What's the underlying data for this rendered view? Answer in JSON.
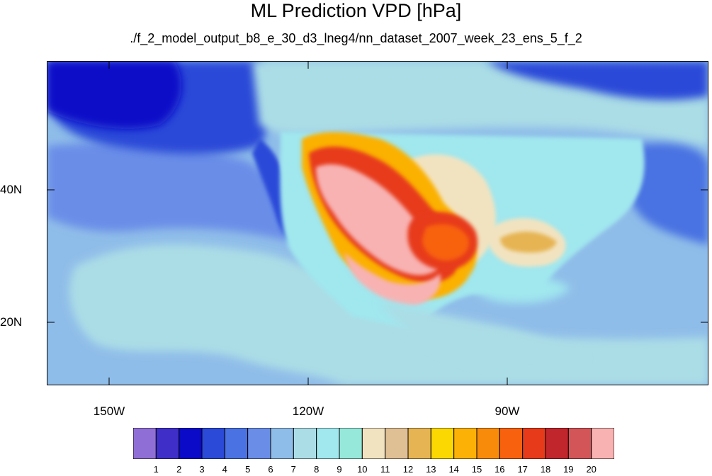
{
  "title": "ML Prediction VPD [hPa]",
  "subtitle": "./f_2_model_output_b8_e_30_d3_lneg4/nn_dataset_2007_week_23_ens_5_f_2",
  "map": {
    "lon_labels": [
      "150W",
      "120W",
      "90W"
    ],
    "lat_labels": [
      "40N",
      "20N"
    ],
    "lon_range": [
      -159.5,
      -60
    ],
    "lat_range": [
      10.5,
      59.5
    ]
  },
  "colorbar": {
    "labels": [
      "1",
      "2",
      "3",
      "4",
      "5",
      "6",
      "7",
      "8",
      "9",
      "10",
      "11",
      "12",
      "13",
      "14",
      "15",
      "16",
      "17",
      "18",
      "19",
      "20"
    ],
    "colors": [
      "#8f6fd6",
      "#3f2fc8",
      "#0a0ac8",
      "#2b4ad8",
      "#4a72e2",
      "#6a8ee8",
      "#8fbde9",
      "#abdde6",
      "#a0e7ee",
      "#96e8da",
      "#f2e3c0",
      "#dfbf94",
      "#e6b452",
      "#fcd803",
      "#fbb106",
      "#f98b0a",
      "#f8620e",
      "#e73a1a",
      "#c0262c",
      "#d35558",
      "#f8b2b2"
    ]
  },
  "chart_data": {
    "type": "heatmap",
    "title": "ML Prediction VPD [hPa]",
    "subtitle": "./f_2_model_output_b8_e_30_d3_lneg4/nn_dataset_2007_week_23_ens_5_f_2",
    "variable_unit": "hPa",
    "x_range": [
      -159.5,
      -60
    ],
    "y_range": [
      10.5,
      59.5
    ],
    "x_ticks": [
      "150W",
      "120W",
      "90W"
    ],
    "y_ticks": [
      "40N",
      "20N"
    ],
    "levels": [
      1,
      2,
      3,
      4,
      5,
      6,
      7,
      8,
      9,
      10,
      11,
      12,
      13,
      14,
      15,
      16,
      17,
      18,
      19,
      20
    ]
  }
}
